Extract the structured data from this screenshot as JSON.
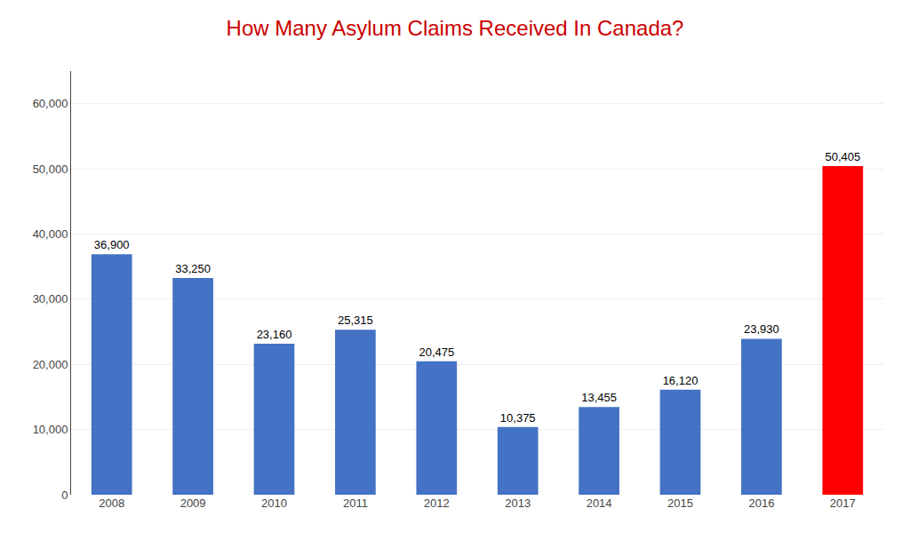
{
  "chart_data": {
    "type": "bar",
    "title": "How Many Asylum Claims Received In Canada?",
    "categories": [
      "2008",
      "2009",
      "2010",
      "2011",
      "2012",
      "2013",
      "2014",
      "2015",
      "2016",
      "2017"
    ],
    "values": [
      36900,
      33250,
      23160,
      25315,
      20475,
      10375,
      13455,
      16120,
      23930,
      50405
    ],
    "value_labels": [
      "36,900",
      "33,250",
      "23,160",
      "25,315",
      "20,475",
      "10,375",
      "13,455",
      "16,120",
      "23,930",
      "50,405"
    ],
    "data_labels": true,
    "colors": [
      "#4472C4",
      "#4472C4",
      "#4472C4",
      "#4472C4",
      "#4472C4",
      "#4472C4",
      "#4472C4",
      "#4472C4",
      "#4472C4",
      "#FF0000"
    ],
    "ylim": [
      0,
      65000
    ],
    "yticks": [
      0,
      {
        "value": 10000,
        "label": "10,000"
      },
      {
        "value": 20000,
        "label": "20,000"
      },
      {
        "value": 30000,
        "label": "30,000"
      },
      {
        "value": 40000,
        "label": "40,000"
      },
      {
        "value": 50000,
        "label": "50,000"
      },
      {
        "value": 60000,
        "label": "60,000"
      }
    ],
    "grid": true
  }
}
